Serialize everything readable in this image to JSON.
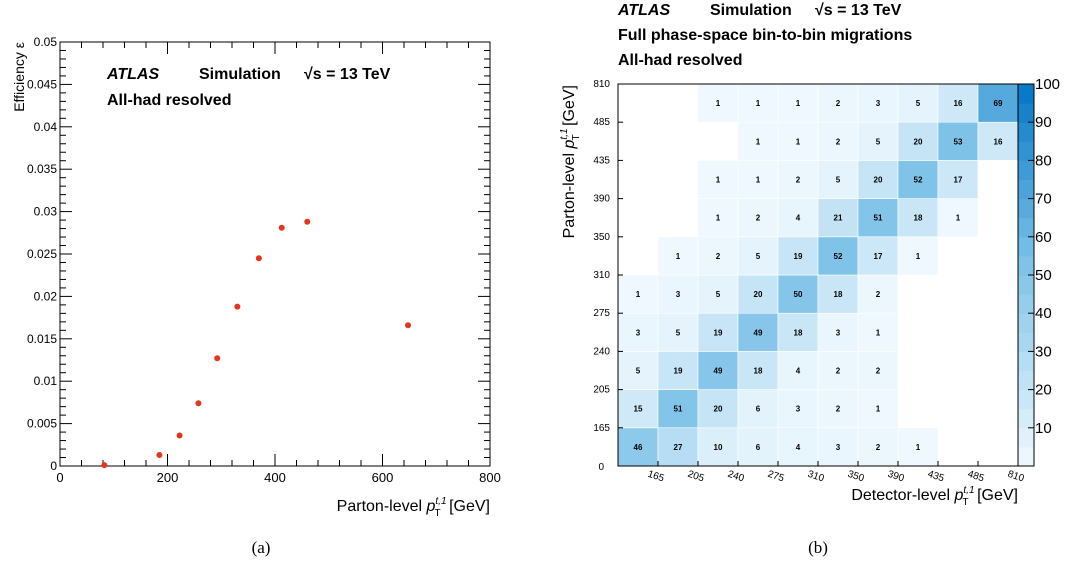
{
  "chart_data": [
    {
      "type": "scatter",
      "panel_caption": "(a)",
      "header": {
        "atlas": "ATLAS",
        "simulation": "Simulation",
        "energy": "√s = 13 TeV",
        "line2": "All-had resolved"
      },
      "xlabel": {
        "main": "Parton-level ",
        "var": "p",
        "sub": "T",
        "sup": "t,1",
        "unit": " [GeV]"
      },
      "ylabel": "Efficiency ε",
      "xlim": [
        0,
        800
      ],
      "ylim": [
        0,
        0.05
      ],
      "xticks": [
        "0",
        "200",
        "400",
        "600",
        "800"
      ],
      "yticks": [
        "0",
        "0.005",
        "0.01",
        "0.015",
        "0.02",
        "0.025",
        "0.03",
        "0.035",
        "0.04",
        "0.045",
        "0.05"
      ],
      "marker_color": "#e8341c",
      "points": [
        {
          "x": 82.5,
          "y": 0.0001
        },
        {
          "x": 185,
          "y": 0.0013
        },
        {
          "x": 222.5,
          "y": 0.0036
        },
        {
          "x": 257.5,
          "y": 0.0074
        },
        {
          "x": 292.5,
          "y": 0.0127
        },
        {
          "x": 330,
          "y": 0.0188
        },
        {
          "x": 370,
          "y": 0.0245
        },
        {
          "x": 412.5,
          "y": 0.0281
        },
        {
          "x": 460,
          "y": 0.0288
        },
        {
          "x": 647.5,
          "y": 0.0166
        }
      ]
    },
    {
      "type": "heatmap",
      "panel_caption": "(b)",
      "header": {
        "atlas": "ATLAS",
        "simulation": "Simulation",
        "energy": "√s = 13 TeV",
        "line2": "Full phase-space bin-to-bin migrations",
        "line3": "All-had resolved"
      },
      "xlabel": {
        "main": "Detector-level ",
        "var": "p",
        "sub": "T",
        "sup": "t,1",
        "unit": " [GeV]"
      },
      "ylabel": {
        "main": "Parton-level ",
        "var": "p",
        "sub": "T",
        "sup": "t,1",
        "unit": " [GeV]"
      },
      "bin_edge_labels": [
        "0",
        "165",
        "205",
        "240",
        "275",
        "310",
        "350",
        "390",
        "435",
        "485",
        "810"
      ],
      "zlim": [
        0,
        100
      ],
      "zticks": [
        "10",
        "20",
        "30",
        "40",
        "50",
        "60",
        "70",
        "80",
        "90",
        "100"
      ],
      "matrix_rows_bottom_to_top": [
        [
          46,
          27,
          10,
          6,
          4,
          3,
          2,
          1,
          null,
          null
        ],
        [
          15,
          51,
          20,
          6,
          3,
          2,
          1,
          null,
          null,
          null
        ],
        [
          5,
          19,
          49,
          18,
          4,
          2,
          2,
          null,
          null,
          null
        ],
        [
          3,
          5,
          19,
          49,
          18,
          3,
          1,
          null,
          null,
          null
        ],
        [
          1,
          3,
          5,
          20,
          50,
          18,
          2,
          null,
          null,
          null
        ],
        [
          null,
          1,
          2,
          5,
          19,
          52,
          17,
          1,
          null,
          null
        ],
        [
          null,
          null,
          1,
          2,
          4,
          21,
          51,
          18,
          1,
          null
        ],
        [
          null,
          null,
          1,
          1,
          2,
          5,
          20,
          52,
          17,
          null
        ],
        [
          null,
          null,
          null,
          1,
          1,
          2,
          5,
          20,
          53,
          16
        ],
        [
          null,
          null,
          1,
          1,
          1,
          2,
          3,
          5,
          16,
          69
        ]
      ]
    }
  ]
}
